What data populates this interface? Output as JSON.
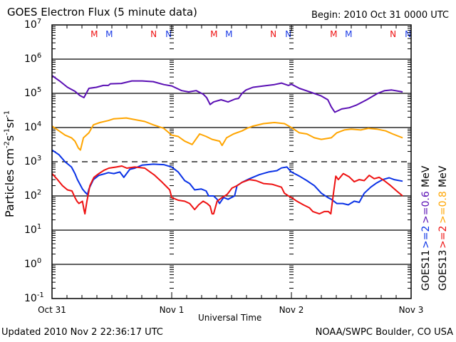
{
  "header": {
    "title": "GOES Electron Flux (5 minute data)",
    "begin": "Begin: 2010 Oct 31 0000 UTC"
  },
  "footer": {
    "updated": "Updated 2010 Nov  2 22:36:17 UTC",
    "credit": "NOAA/SWPC Boulder, CO USA"
  },
  "colors": {
    "goes11_06": "#5a0fb4",
    "goes13_08": "#ffa500",
    "goes11_2": "#0a32e6",
    "goes13_2": "#ee1111",
    "marker_red": "#ee1111",
    "marker_blue": "#1a3ae6"
  },
  "chart_data": {
    "type": "line",
    "title": "GOES Electron Flux (5 minute data)",
    "xlabel": "Universal Time",
    "ylabel": "Particles cm-2s-1sr-1",
    "ylabel_parts": {
      "base": "Particles cm",
      "e1": "-2",
      "s": "s",
      "e2": "-1",
      "sr": "sr",
      "e3": "-1"
    },
    "yscale": "log",
    "ylim": [
      0.1,
      10000000
    ],
    "xlim_hours": [
      0,
      72
    ],
    "x_tick_labels": [
      "Oct 31",
      "Nov 1",
      "Nov 2",
      "Nov 3"
    ],
    "x_tick_hours": [
      0,
      24,
      48,
      72
    ],
    "y_tick_labels": [
      {
        "base": "10",
        "exp": "7"
      },
      {
        "base": "10",
        "exp": "6"
      },
      {
        "base": "10",
        "exp": "5"
      },
      {
        "base": "10",
        "exp": "4"
      },
      {
        "base": "10",
        "exp": "3"
      },
      {
        "base": "10",
        "exp": "2"
      },
      {
        "base": "10",
        "exp": "1"
      },
      {
        "base": "10",
        "exp": "0"
      },
      {
        "base": "10",
        "exp": "-1"
      }
    ],
    "y_tick_exponents": [
      7,
      6,
      5,
      4,
      3,
      2,
      1,
      0,
      -1
    ],
    "solid_grid_values": [
      1000000,
      100000,
      10000,
      100,
      10,
      1
    ],
    "dashed_grid_values": [
      1000
    ],
    "local_time_markers": [
      {
        "label": "M",
        "hour": 8.3,
        "color": "red"
      },
      {
        "label": "M",
        "hour": 11.3,
        "color": "blue"
      },
      {
        "label": "N",
        "hour": 20.3,
        "color": "red"
      },
      {
        "label": "N",
        "hour": 23.3,
        "color": "blue"
      },
      {
        "label": "M",
        "hour": 32.3,
        "color": "red"
      },
      {
        "label": "M",
        "hour": 35.3,
        "color": "blue"
      },
      {
        "label": "N",
        "hour": 44.3,
        "color": "red"
      },
      {
        "label": "N",
        "hour": 47.3,
        "color": "blue"
      },
      {
        "label": "M",
        "hour": 56.3,
        "color": "red"
      },
      {
        "label": "M",
        "hour": 59.3,
        "color": "blue"
      },
      {
        "label": "N",
        "hour": 68.3,
        "color": "red"
      },
      {
        "label": "N",
        "hour": 71.3,
        "color": "blue"
      }
    ],
    "legend": [
      {
        "label": "GOES11",
        "color_key": "none"
      },
      {
        "label": ">=2",
        "color_key": "goes11_2"
      },
      {
        "label": ">=0.6",
        "color_key": "goes11_06"
      },
      {
        "label": "MeV",
        "color_key": "none"
      },
      {
        "label": "GOES13",
        "color_key": "none"
      },
      {
        "label": ">=2",
        "color_key": "goes13_2"
      },
      {
        "label": ">=0.8",
        "color_key": "goes13_08"
      },
      {
        "label": "MeV",
        "color_key": "none"
      }
    ],
    "legend_placement": "right-vertical",
    "series": [
      {
        "name": "GOES11 >=0.6 MeV",
        "color_key": "goes11_06",
        "points": [
          [
            0,
            330000
          ],
          [
            1.7,
            220000
          ],
          [
            3.1,
            150000
          ],
          [
            4.6,
            115000
          ],
          [
            5.6,
            86000
          ],
          [
            6.4,
            75000
          ],
          [
            7.4,
            140000
          ],
          [
            8.9,
            150000
          ],
          [
            10.3,
            170000
          ],
          [
            11.3,
            170000
          ],
          [
            11.7,
            190000
          ],
          [
            13.9,
            195000
          ],
          [
            16,
            230000
          ],
          [
            18.1,
            230000
          ],
          [
            20.3,
            220000
          ],
          [
            22.4,
            180000
          ],
          [
            24,
            165000
          ],
          [
            26,
            120000
          ],
          [
            27.4,
            110000
          ],
          [
            28.9,
            120000
          ],
          [
            30.3,
            95000
          ],
          [
            31,
            75000
          ],
          [
            31.7,
            47000
          ],
          [
            32.4,
            56000
          ],
          [
            33.9,
            65000
          ],
          [
            35.3,
            56000
          ],
          [
            36.7,
            68000
          ],
          [
            37.4,
            71000
          ],
          [
            38.1,
            100000
          ],
          [
            38.9,
            125000
          ],
          [
            40.3,
            150000
          ],
          [
            42.4,
            165000
          ],
          [
            44.6,
            180000
          ],
          [
            46,
            200000
          ],
          [
            47.4,
            170000
          ],
          [
            48,
            185000
          ],
          [
            49.6,
            140000
          ],
          [
            51.7,
            110000
          ],
          [
            53.9,
            85000
          ],
          [
            55.3,
            65000
          ],
          [
            56,
            40000
          ],
          [
            56.7,
            28000
          ],
          [
            58.1,
            35000
          ],
          [
            59.6,
            38000
          ],
          [
            61,
            45000
          ],
          [
            63.1,
            65000
          ],
          [
            65.3,
            100000
          ],
          [
            66.7,
            120000
          ],
          [
            68.1,
            125000
          ],
          [
            70.3,
            110000
          ]
        ]
      },
      {
        "name": "GOES13 >=0.8 MeV",
        "color_key": "goes13_08",
        "points": [
          [
            0,
            11000
          ],
          [
            1.4,
            8000
          ],
          [
            2.6,
            6000
          ],
          [
            3.9,
            5000
          ],
          [
            4.6,
            4000
          ],
          [
            5.3,
            2500
          ],
          [
            5.7,
            2200
          ],
          [
            6.3,
            5000
          ],
          [
            7.4,
            7000
          ],
          [
            8.3,
            12000
          ],
          [
            9.6,
            14000
          ],
          [
            11.3,
            16000
          ],
          [
            12.4,
            18000
          ],
          [
            14.9,
            19000
          ],
          [
            16.6,
            17000
          ],
          [
            18.6,
            15000
          ],
          [
            20.3,
            12000
          ],
          [
            22.4,
            9500
          ],
          [
            24,
            6000
          ],
          [
            25.3,
            5500
          ],
          [
            26.6,
            4000
          ],
          [
            28.1,
            3200
          ],
          [
            29.6,
            6500
          ],
          [
            30.9,
            5500
          ],
          [
            32.1,
            4500
          ],
          [
            33.6,
            4000
          ],
          [
            34.1,
            3000
          ],
          [
            35,
            5000
          ],
          [
            36.4,
            6500
          ],
          [
            38.1,
            8000
          ],
          [
            39.1,
            9500
          ],
          [
            40.3,
            11000
          ],
          [
            42.4,
            13000
          ],
          [
            44.6,
            14000
          ],
          [
            46.6,
            13000
          ],
          [
            48,
            10000
          ],
          [
            49.6,
            7000
          ],
          [
            51.1,
            6500
          ],
          [
            52.6,
            5000
          ],
          [
            54,
            4500
          ],
          [
            56,
            5000
          ],
          [
            57.1,
            7000
          ],
          [
            58.6,
            8500
          ],
          [
            60,
            9000
          ],
          [
            61.9,
            8500
          ],
          [
            63.4,
            9500
          ],
          [
            65.1,
            9000
          ],
          [
            66.9,
            8000
          ],
          [
            68.3,
            6500
          ],
          [
            70.3,
            5000
          ]
        ]
      },
      {
        "name": "GOES11 >=2 MeV",
        "color_key": "goes11_2",
        "points": [
          [
            0,
            2200
          ],
          [
            1.4,
            1600
          ],
          [
            2.6,
            1000
          ],
          [
            3.9,
            700
          ],
          [
            4.6,
            450
          ],
          [
            5.1,
            300
          ],
          [
            5.6,
            220
          ],
          [
            6.1,
            160
          ],
          [
            6.6,
            130
          ],
          [
            7.1,
            110
          ],
          [
            7.4,
            160
          ],
          [
            8.3,
            300
          ],
          [
            9.4,
            400
          ],
          [
            10.7,
            450
          ],
          [
            11.3,
            480
          ],
          [
            12.4,
            450
          ],
          [
            13.6,
            500
          ],
          [
            14.4,
            350
          ],
          [
            15.6,
            600
          ],
          [
            16.6,
            650
          ],
          [
            18.1,
            800
          ],
          [
            20.3,
            850
          ],
          [
            22.4,
            820
          ],
          [
            24,
            700
          ],
          [
            25.3,
            500
          ],
          [
            26.6,
            280
          ],
          [
            27.6,
            230
          ],
          [
            28.6,
            150
          ],
          [
            29.9,
            160
          ],
          [
            30.9,
            140
          ],
          [
            31.4,
            100
          ],
          [
            32.4,
            100
          ],
          [
            33.1,
            80
          ],
          [
            33.6,
            60
          ],
          [
            34.4,
            90
          ],
          [
            35.3,
            80
          ],
          [
            36.6,
            100
          ],
          [
            37.1,
            200
          ],
          [
            38.1,
            250
          ],
          [
            39.6,
            320
          ],
          [
            41.6,
            420
          ],
          [
            43.4,
            500
          ],
          [
            45.1,
            550
          ],
          [
            46,
            660
          ],
          [
            47.1,
            700
          ],
          [
            48,
            500
          ],
          [
            49.6,
            380
          ],
          [
            51.1,
            280
          ],
          [
            52.6,
            200
          ],
          [
            54,
            120
          ],
          [
            55.3,
            90
          ],
          [
            56,
            80
          ],
          [
            57.1,
            60
          ],
          [
            58.3,
            60
          ],
          [
            59.4,
            55
          ],
          [
            60.6,
            70
          ],
          [
            61.6,
            65
          ],
          [
            62.6,
            120
          ],
          [
            63.9,
            180
          ],
          [
            65.1,
            240
          ],
          [
            66.3,
            300
          ],
          [
            67.6,
            340
          ],
          [
            68.6,
            300
          ],
          [
            70.3,
            270
          ]
        ]
      },
      {
        "name": "GOES13 >=2 MeV",
        "color_key": "goes13_2",
        "points": [
          [
            0,
            450
          ],
          [
            1.1,
            300
          ],
          [
            2.1,
            200
          ],
          [
            3.1,
            150
          ],
          [
            4,
            140
          ],
          [
            4.6,
            90
          ],
          [
            5,
            70
          ],
          [
            5.4,
            60
          ],
          [
            6.1,
            70
          ],
          [
            6.4,
            40
          ],
          [
            6.6,
            30
          ],
          [
            7,
            70
          ],
          [
            7.6,
            200
          ],
          [
            8.4,
            350
          ],
          [
            9.4,
            450
          ],
          [
            10.4,
            560
          ],
          [
            11.4,
            650
          ],
          [
            12.9,
            700
          ],
          [
            14,
            750
          ],
          [
            15,
            650
          ],
          [
            16.6,
            700
          ],
          [
            18.6,
            650
          ],
          [
            20.6,
            400
          ],
          [
            22.1,
            250
          ],
          [
            23.6,
            150
          ],
          [
            24,
            90
          ],
          [
            25.3,
            75
          ],
          [
            26.6,
            70
          ],
          [
            27.6,
            60
          ],
          [
            28.6,
            40
          ],
          [
            29.4,
            55
          ],
          [
            30.3,
            70
          ],
          [
            31.1,
            60
          ],
          [
            31.7,
            50
          ],
          [
            32.1,
            30
          ],
          [
            32.4,
            30
          ],
          [
            33.1,
            70
          ],
          [
            34.1,
            90
          ],
          [
            35.1,
            110
          ],
          [
            36.1,
            170
          ],
          [
            37.1,
            200
          ],
          [
            38.1,
            250
          ],
          [
            39.6,
            300
          ],
          [
            40.9,
            280
          ],
          [
            42.4,
            230
          ],
          [
            44.1,
            220
          ],
          [
            46,
            180
          ],
          [
            46.6,
            120
          ],
          [
            47.4,
            100
          ],
          [
            48,
            90
          ],
          [
            49.1,
            70
          ],
          [
            50.4,
            55
          ],
          [
            51.6,
            45
          ],
          [
            52.3,
            35
          ],
          [
            53.6,
            30
          ],
          [
            54.6,
            35
          ],
          [
            55.4,
            35
          ],
          [
            55.9,
            30
          ],
          [
            56.4,
            110
          ],
          [
            56.9,
            380
          ],
          [
            57.4,
            300
          ],
          [
            58.4,
            450
          ],
          [
            59.6,
            360
          ],
          [
            60.6,
            260
          ],
          [
            61.6,
            300
          ],
          [
            62.6,
            280
          ],
          [
            63.6,
            400
          ],
          [
            64.6,
            320
          ],
          [
            65.6,
            350
          ],
          [
            66.6,
            280
          ],
          [
            67.9,
            200
          ],
          [
            69.1,
            140
          ],
          [
            70.3,
            100
          ]
        ]
      }
    ]
  }
}
